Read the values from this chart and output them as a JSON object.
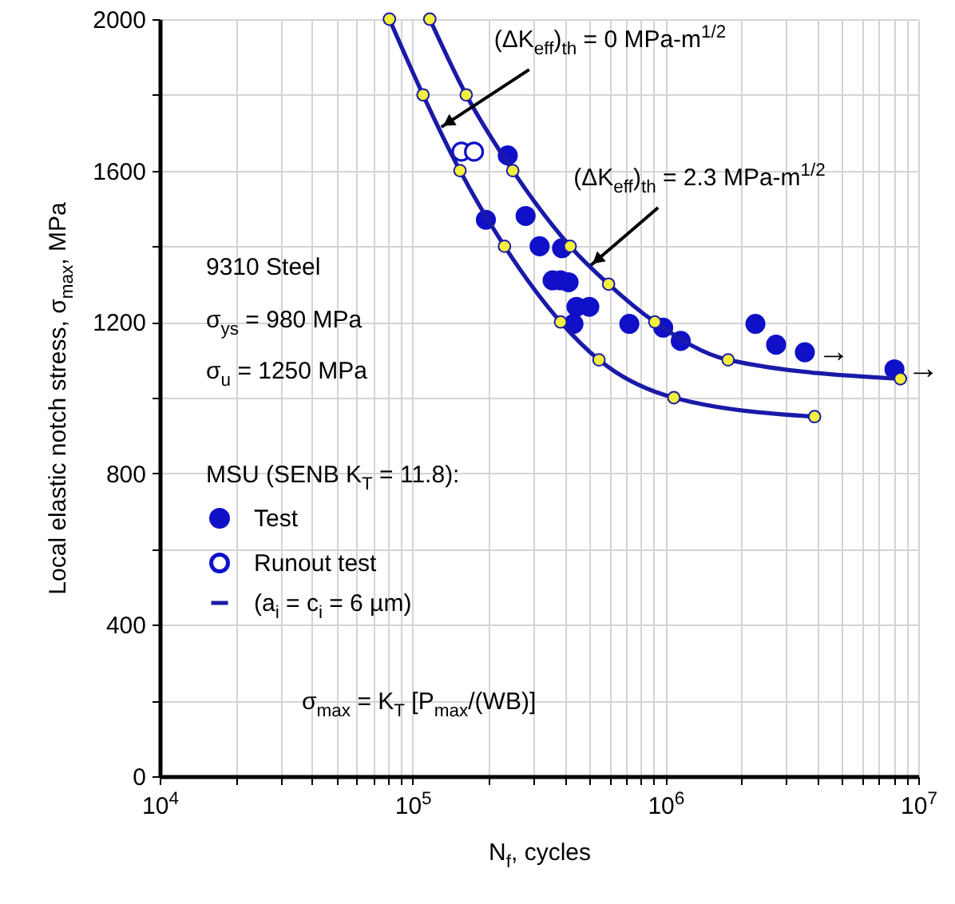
{
  "chart_data": {
    "type": "scatter",
    "xlabel": "N$_{f}$, cycles",
    "ylabel": "Local elastic notch stress, σ$_{max}$, MPa",
    "log": "x",
    "grid": true,
    "marker": "circle",
    "legend": "left",
    "xlim": [
      10000,
      10000000
    ],
    "ylim": [
      0,
      2000
    ],
    "xticks": [
      {
        "value": 10000,
        "label": "10$^{4}$"
      },
      {
        "value": 20000,
        "label": null
      },
      {
        "value": 30000,
        "label": null
      },
      {
        "value": 40000,
        "label": null
      },
      {
        "value": 50000,
        "label": null
      },
      {
        "value": 60000,
        "label": null
      },
      {
        "value": 70000,
        "label": null
      },
      {
        "value": 80000,
        "label": null
      },
      {
        "value": 90000,
        "label": null
      },
      {
        "value": 100000,
        "label": "10$^{5}$"
      },
      {
        "value": 200000,
        "label": null
      },
      {
        "value": 300000,
        "label": null
      },
      {
        "value": 400000,
        "label": null
      },
      {
        "value": 500000,
        "label": null
      },
      {
        "value": 600000,
        "label": null
      },
      {
        "value": 700000,
        "label": null
      },
      {
        "value": 800000,
        "label": null
      },
      {
        "value": 900000,
        "label": null
      },
      {
        "value": 1000000,
        "label": "10$^{6}$"
      },
      {
        "value": 2000000,
        "label": null
      },
      {
        "value": 3000000,
        "label": null
      },
      {
        "value": 4000000,
        "label": null
      },
      {
        "value": 5000000,
        "label": null
      },
      {
        "value": 6000000,
        "label": null
      },
      {
        "value": 7000000,
        "label": null
      },
      {
        "value": 8000000,
        "label": null
      },
      {
        "value": 9000000,
        "label": null
      },
      {
        "value": 10000000,
        "label": "10$^{7}$"
      }
    ],
    "yticks": [
      0,
      {
        "value": 200,
        "label": null
      },
      400,
      {
        "value": 600,
        "label": null
      },
      800,
      {
        "value": 1000,
        "label": null
      },
      1200,
      {
        "value": 1400,
        "label": null
      },
      1600,
      {
        "value": 1800,
        "label": null
      },
      2000
    ],
    "series": [
      {
        "name": "Test",
        "color": "#1010c8",
        "x": [
          238000,
          195000,
          280000,
          318000,
          390000,
          358000,
          385000,
          414000,
          445000,
          500000,
          433000,
          720000,
          980000,
          1150000,
          2270000,
          2740000,
          3560000,
          8050000
        ],
        "values": [
          1640,
          1470,
          1480,
          1400,
          1395,
          1310,
          1310,
          1305,
          1240,
          1240,
          1195,
          1195,
          1185,
          1150,
          1195,
          1140,
          1120,
          1075
        ]
      },
      {
        "name": "Runout test",
        "color": "#1010c8",
        "colors": [
          "#ffffff",
          "#ffffff"
        ],
        "x": [
          156000,
          175000
        ],
        "values": [
          1650,
          1650
        ]
      },
      {
        "name": "(a$_{i}$ = c$_{i}$ = 6 µm)",
        "type": "line",
        "color": "#1a1aa8",
        "colors": [
          "#f2f03c",
          "#f2f03c",
          "#f2f03c",
          "#f2f03c",
          "#f2f03c",
          "#f2f03c",
          "#f2f03c",
          "#f2f03c"
        ],
        "x": [
          81000,
          110000,
          154000,
          231000,
          385000,
          546000,
          1080000,
          3890000
        ],
        "values": [
          2000,
          1800,
          1600,
          1400,
          1200,
          1100,
          1000,
          950
        ]
      },
      {
        "type": "line",
        "color": "#1a1aa8",
        "colors": [
          "#f2f03c",
          "#f2f03c",
          "#f2f03c",
          "#f2f03c",
          "#f2f03c",
          "#f2f03c",
          "#f2f03c",
          "#f2f03c"
        ],
        "x": [
          117000,
          163000,
          249000,
          420000,
          596000,
          908000,
          1770000,
          8500000
        ],
        "values": [
          2000,
          1800,
          1600,
          1400,
          1300,
          1200,
          1100,
          1050
        ]
      }
    ],
    "annotations": [
      "9310 Steel",
      "σ$_{ys}$ = 980 MPa",
      "σ$_{u}$ = 1250 MPa",
      "MSU (SENB  K$_{T}$ = 11.8):",
      "σ$_{max}$ = K$_{T}$ [P$_{max}$/(WB)]",
      {
        "text": "(ΔK$_{eff}$)$_{th}$ = 0 MPa-m$^{1/2}$",
        "x": 130000,
        "y": 1715
      },
      {
        "text": "(ΔK$_{eff}$)$_{th}$ = 2.3 MPa-m$^{1/2}$",
        "x": 508000,
        "y": 1350
      },
      {
        "text": "→",
        "x": 3560000,
        "y": 1120
      },
      {
        "text": "→",
        "x": 8050000,
        "y": 1075
      }
    ]
  }
}
